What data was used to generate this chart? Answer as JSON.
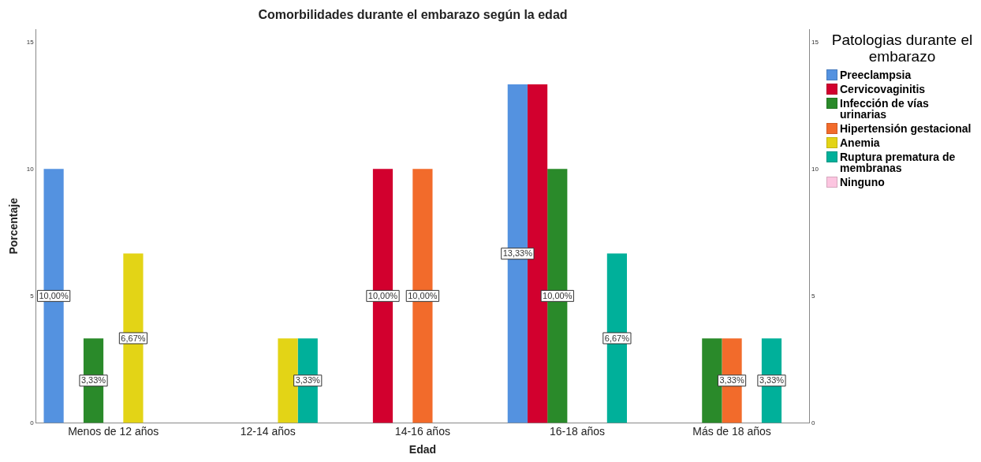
{
  "chart_data": {
    "type": "bar",
    "title": "Comorbilidades durante el embarazo según la edad",
    "xlabel": "Edad",
    "ylabel": "Porcentaje",
    "legend_title": "Patologias durante el embarazo",
    "categories": [
      "Menos de 12 años",
      "12-14 años",
      "14-16 años",
      "16-18 años",
      "Más de 18 años"
    ],
    "series": [
      {
        "name": "Preeclampsia",
        "color": "#5492e0",
        "values": [
          10,
          null,
          null,
          13.33,
          null
        ],
        "value_labels": [
          "10,00%",
          null,
          null,
          "13,33%",
          null
        ]
      },
      {
        "name": "Cervicovaginitis",
        "color": "#d2002e",
        "values": [
          null,
          null,
          10,
          13.33,
          null
        ],
        "value_labels": [
          null,
          null,
          "10,00%",
          null,
          null
        ]
      },
      {
        "name": "Infección de vías urinarias",
        "color": "#2a8a2a",
        "values": [
          3.33,
          null,
          null,
          10,
          3.33
        ],
        "value_labels": [
          "3,33%",
          null,
          null,
          "10,00%",
          null
        ]
      },
      {
        "name": "Hipertensión gestacional",
        "color": "#f26b2b",
        "values": [
          null,
          null,
          10,
          null,
          3.33
        ],
        "value_labels": [
          null,
          null,
          "10,00%",
          null,
          "3,33%"
        ]
      },
      {
        "name": "Anemia",
        "color": "#e3d416",
        "values": [
          6.67,
          3.33,
          null,
          null,
          null
        ],
        "value_labels": [
          "6,67%",
          null,
          null,
          null,
          null
        ]
      },
      {
        "name": "Ruptura prematura de membranas",
        "color": "#00b09a",
        "values": [
          null,
          3.33,
          null,
          6.67,
          3.33
        ],
        "value_labels": [
          null,
          "3,33%",
          null,
          "6,67%",
          "3,33%"
        ]
      },
      {
        "name": "Ninguno",
        "color": "#fcc5e0",
        "values": [
          null,
          null,
          null,
          null,
          null
        ]
      }
    ],
    "ylim": [
      0,
      15.5
    ],
    "yticks": [
      0,
      5,
      10,
      15
    ],
    "y2lim": [
      0,
      15.5
    ],
    "y2ticks": [
      0,
      5,
      10,
      15
    ],
    "grid": false,
    "legend": "top right"
  }
}
